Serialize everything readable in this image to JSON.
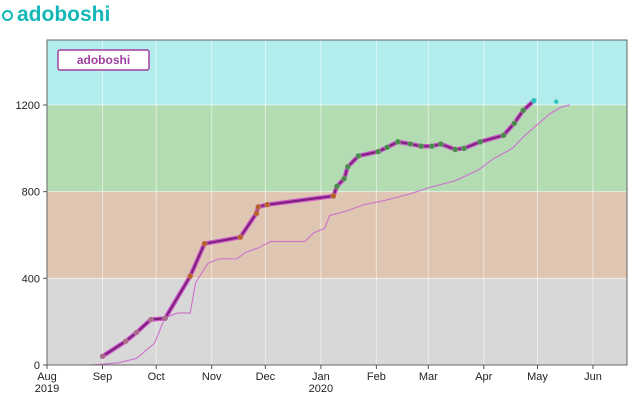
{
  "header": {
    "title": "adoboshi"
  },
  "colors": {
    "accent": "#14b7b7",
    "band_top": "#b3ecec",
    "band_green": "#b3dcb3",
    "band_tan": "#dfc6b2",
    "band_gray": "#d8d8d8",
    "main_line": "#7a2078",
    "main_line_edge": "#cc55cc",
    "secondary_line": "#cc77cc",
    "legend_border": "#a040a0",
    "legend_text": "#a040a0"
  },
  "chart_data": {
    "type": "line",
    "title": "adoboshi",
    "legend": {
      "label": "adoboshi",
      "placement": "top-left"
    },
    "grid": true,
    "xlim": [
      "2019-08-01",
      "2020-06-20"
    ],
    "ylim": [
      0,
      1500
    ],
    "x_ticks": [
      {
        "date": "2019-08-01",
        "label": "Aug",
        "sub": "2019"
      },
      {
        "date": "2019-09-01",
        "label": "Sep",
        "sub": ""
      },
      {
        "date": "2019-10-01",
        "label": "Oct",
        "sub": ""
      },
      {
        "date": "2019-11-01",
        "label": "Nov",
        "sub": ""
      },
      {
        "date": "2019-12-01",
        "label": "Dec",
        "sub": ""
      },
      {
        "date": "2020-01-01",
        "label": "Jan",
        "sub": "2020"
      },
      {
        "date": "2020-02-01",
        "label": "Feb",
        "sub": ""
      },
      {
        "date": "2020-03-01",
        "label": "Mar",
        "sub": ""
      },
      {
        "date": "2020-04-01",
        "label": "Apr",
        "sub": ""
      },
      {
        "date": "2020-05-01",
        "label": "May",
        "sub": ""
      },
      {
        "date": "2020-06-01",
        "label": "Jun",
        "sub": ""
      }
    ],
    "y_ticks": [
      0,
      400,
      800,
      1200
    ],
    "bands": [
      {
        "from": 0,
        "to": 400,
        "color": "#d8d8d8"
      },
      {
        "from": 400,
        "to": 800,
        "color": "#dfc6b2"
      },
      {
        "from": 800,
        "to": 1200,
        "color": "#b3dcb3"
      },
      {
        "from": 1200,
        "to": 1500,
        "color": "#b3ecec"
      }
    ],
    "series": [
      {
        "color": "#7a2078",
        "points": [
          [
            "2019-09-01",
            40
          ],
          [
            "2019-09-14",
            110
          ],
          [
            "2019-09-20",
            150
          ],
          [
            "2019-09-28",
            210
          ],
          [
            "2019-10-06",
            215
          ],
          [
            "2019-10-20",
            410
          ],
          [
            "2019-10-28",
            560
          ],
          [
            "2019-11-17",
            590
          ],
          [
            "2019-11-26",
            700
          ],
          [
            "2019-11-27",
            730
          ],
          [
            "2019-12-02",
            740
          ],
          [
            "2020-01-08",
            780
          ],
          [
            "2020-01-10",
            825
          ],
          [
            "2020-01-14",
            860
          ],
          [
            "2020-01-16",
            915
          ],
          [
            "2020-01-22",
            965
          ],
          [
            "2020-02-02",
            985
          ],
          [
            "2020-02-07",
            1005
          ],
          [
            "2020-02-13",
            1030
          ],
          [
            "2020-02-20",
            1020
          ],
          [
            "2020-02-26",
            1010
          ],
          [
            "2020-03-03",
            1010
          ],
          [
            "2020-03-08",
            1020
          ],
          [
            "2020-03-16",
            995
          ],
          [
            "2020-03-21",
            1000
          ],
          [
            "2020-03-30",
            1030
          ],
          [
            "2020-04-12",
            1060
          ],
          [
            "2020-04-18",
            1115
          ],
          [
            "2020-04-23",
            1175
          ],
          [
            "2020-04-29",
            1220
          ]
        ],
        "marker_colors": [
          "#a86a86",
          "#a86a86",
          "#a86a86",
          "#a86a86",
          "#a86a86",
          "#b8602e",
          "#b8602e",
          "#b8602e",
          "#b8602e",
          "#b8602e",
          "#b8602e",
          "#b8602e",
          "#4a8a4a",
          "#4a8a4a",
          "#4a8a4a",
          "#4a8a4a",
          "#4a8a4a",
          "#4a8a4a",
          "#4a8a4a",
          "#4a8a4a",
          "#4a8a4a",
          "#4a8a4a",
          "#4a8a4a",
          "#4a8a4a",
          "#4a8a4a",
          "#4a8a4a",
          "#4a8a4a",
          "#4a8a4a",
          "#4a8a4a",
          "#2ec4c4"
        ]
      },
      {
        "color": "#cc77cc",
        "points": [
          [
            "2019-08-26",
            0
          ],
          [
            "2019-09-10",
            10
          ],
          [
            "2019-09-20",
            30
          ],
          [
            "2019-09-30",
            100
          ],
          [
            "2019-10-06",
            220
          ],
          [
            "2019-10-13",
            240
          ],
          [
            "2019-10-20",
            240
          ],
          [
            "2019-10-23",
            380
          ],
          [
            "2019-10-30",
            470
          ],
          [
            "2019-11-05",
            490
          ],
          [
            "2019-11-15",
            490
          ],
          [
            "2019-11-20",
            520
          ],
          [
            "2019-11-27",
            540
          ],
          [
            "2019-12-04",
            570
          ],
          [
            "2019-12-23",
            570
          ],
          [
            "2019-12-28",
            610
          ],
          [
            "2020-01-03",
            630
          ],
          [
            "2020-01-06",
            690
          ],
          [
            "2020-01-15",
            710
          ],
          [
            "2020-01-25",
            740
          ],
          [
            "2020-02-06",
            760
          ],
          [
            "2020-02-20",
            790
          ],
          [
            "2020-03-02",
            820
          ],
          [
            "2020-03-16",
            850
          ],
          [
            "2020-03-29",
            900
          ],
          [
            "2020-04-06",
            950
          ],
          [
            "2020-04-17",
            1000
          ],
          [
            "2020-04-24",
            1060
          ],
          [
            "2020-05-01",
            1110
          ],
          [
            "2020-05-08",
            1160
          ],
          [
            "2020-05-14",
            1190
          ],
          [
            "2020-05-19",
            1200
          ]
        ]
      },
      {
        "color": "#2ec4c4",
        "points": [
          [
            "2020-05-07",
            1220
          ]
        ]
      }
    ]
  }
}
